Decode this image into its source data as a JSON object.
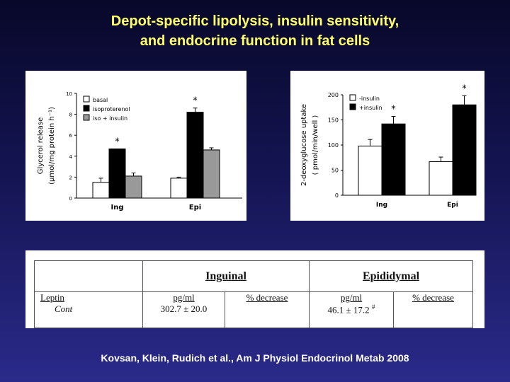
{
  "slide": {
    "title_line1": "Depot-specific lipolysis, insulin sensitivity,",
    "title_line2": "and endocrine function in fat cells",
    "citation": "Kovsan, Klein, Rudich et al., Am J Physiol Endocrinol Metab 2008"
  },
  "chart_data": [
    {
      "type": "bar",
      "title": "",
      "ylabel_line1": "Glycerol release",
      "ylabel_line2": "(µmol/mg protein h⁻¹)",
      "xlabel": "",
      "ylim": [
        0,
        10
      ],
      "yticks": [
        0,
        2,
        4,
        6,
        8,
        10
      ],
      "categories": [
        "Ing",
        "Epi"
      ],
      "series": [
        {
          "name": "basal",
          "values": [
            1.5,
            1.9
          ],
          "errors": [
            0.4,
            0.1
          ],
          "color": "#ffffff"
        },
        {
          "name": "isoproterenol",
          "values": [
            4.7,
            8.2
          ],
          "errors": [
            0.0,
            0.4
          ],
          "color": "#000000"
        },
        {
          "name": "iso + insulin",
          "values": [
            2.1,
            4.6
          ],
          "errors": [
            0.3,
            0.2
          ],
          "color": "#999999"
        }
      ],
      "annotations": [
        {
          "category": 0,
          "series": 1,
          "text": "*"
        },
        {
          "category": 1,
          "series": 1,
          "text": "*"
        }
      ]
    },
    {
      "type": "bar",
      "title": "",
      "ylabel_line1": "2-deoxyglucose uptake",
      "ylabel_line2": "( pmol/min/well )",
      "xlabel": "",
      "ylim": [
        0,
        200
      ],
      "yticks": [
        0,
        50,
        100,
        150,
        200
      ],
      "categories": [
        "Ing",
        "Epi"
      ],
      "series": [
        {
          "name": "-insulin",
          "values": [
            98,
            67
          ],
          "errors": [
            13,
            9
          ],
          "color": "#ffffff"
        },
        {
          "name": "+insulin",
          "values": [
            142,
            180
          ],
          "errors": [
            15,
            18
          ],
          "color": "#000000"
        }
      ],
      "annotations": [
        {
          "category": 0,
          "series": 1,
          "text": "*"
        },
        {
          "category": 1,
          "series": 1,
          "text": "*"
        }
      ]
    }
  ],
  "table": {
    "col_inguinal": "Inguinal",
    "col_epididymal": "Epididymal",
    "row_label": "Leptin",
    "row_sub": "Cont",
    "unit_ing": "pg/ml",
    "pct_ing": "% decrease",
    "unit_epi": "pg/ml",
    "pct_epi": "% decrease",
    "val_ing": "302.7 ± 20.0",
    "val_epi": "46.1 ± 17.2",
    "epi_mark": "#"
  }
}
